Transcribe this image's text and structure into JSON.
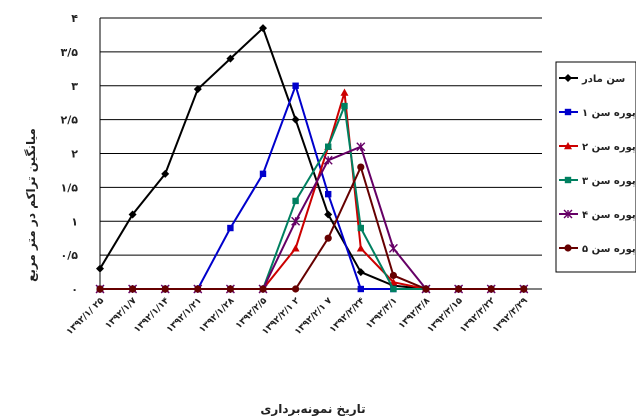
{
  "chart_data": {
    "type": "line",
    "title": "",
    "xlabel": "تاریخ نمونه‌برداری",
    "ylabel": "میانگین تراکم در متر مربع",
    "ylim": [
      0,
      4
    ],
    "yticks": [
      "۰",
      "۰/۵",
      "۱",
      "۱/۵",
      "۲",
      "۲/۵",
      "۳",
      "۳/۵",
      "۴"
    ],
    "grid": true,
    "legend_position": "right",
    "categories": [
      "۱۳۹۲/۱/ ۲۵",
      "۱۳۹۲/۱/۷",
      "۱۳۹۲/۱/۱۴",
      "۱۳۹۲/۱/۲۱",
      "۱۳۹۲/۱/۲۸",
      "۱۳۹۲/۲/۵",
      "۱۳۹۲/۲/۱ ۲",
      "۱۳۹۲/۲/۱ ۷",
      "۱۳۹۲/۲/۲۴",
      "۱۳۹۲/۳/۱",
      "۱۳۹۲/۳/۸",
      "۱۳۹۲/۳/۱۵",
      "۱۳۹۲/۳/۲۲",
      "۱۳۹۲/۳/۲۹"
    ],
    "x": [
      0,
      1,
      2,
      3,
      4,
      5,
      6,
      7,
      8,
      9,
      10,
      11,
      12,
      13
    ],
    "series": [
      {
        "name": "سن مادر",
        "color": "#000000",
        "marker": "diamond",
        "x": [
          0,
          1,
          2,
          3,
          4,
          5,
          6,
          7,
          8,
          9,
          10,
          11,
          12,
          13
        ],
        "values": [
          0.3,
          1.1,
          1.7,
          2.95,
          3.4,
          3.85,
          2.5,
          1.1,
          0.25,
          0.05,
          0,
          0,
          0,
          0
        ]
      },
      {
        "name": "پوره سن ۱",
        "color": "#0000cc",
        "marker": "square",
        "x": [
          0,
          1,
          2,
          3,
          4,
          5,
          6,
          7,
          8,
          9,
          10,
          11,
          12,
          13
        ],
        "values": [
          0,
          0,
          0,
          0,
          0.9,
          1.7,
          3.0,
          1.4,
          0,
          0,
          0,
          0,
          0,
          0
        ]
      },
      {
        "name": "پوره سن ۲",
        "color": "#cc0000",
        "marker": "triangle",
        "x": [
          0,
          1,
          2,
          3,
          4,
          5,
          6,
          7,
          7.5,
          8,
          9,
          10,
          11,
          12,
          13
        ],
        "values": [
          0,
          0,
          0,
          0,
          0,
          0,
          0.6,
          2.1,
          2.9,
          0.6,
          0.1,
          0,
          0,
          0,
          0
        ]
      },
      {
        "name": "پوره سن ۳",
        "color": "#008060",
        "marker": "square",
        "x": [
          0,
          1,
          2,
          3,
          4,
          5,
          6,
          7,
          7.5,
          8,
          9,
          10,
          11,
          12,
          13
        ],
        "values": [
          0,
          0,
          0,
          0,
          0,
          0,
          1.3,
          2.1,
          2.7,
          0.9,
          0,
          0,
          0,
          0,
          0
        ]
      },
      {
        "name": "پوره سن ۴",
        "color": "#660066",
        "marker": "star",
        "x": [
          0,
          1,
          2,
          3,
          4,
          5,
          6,
          7,
          8,
          9,
          10,
          11,
          12,
          13
        ],
        "values": [
          0,
          0,
          0,
          0,
          0,
          0,
          1.0,
          1.9,
          2.1,
          0.6,
          0,
          0,
          0,
          0
        ]
      },
      {
        "name": "پوره سن ۵",
        "color": "#660000",
        "marker": "circle",
        "x": [
          0,
          1,
          2,
          3,
          4,
          5,
          6,
          7,
          8,
          9,
          10,
          11,
          12,
          13
        ],
        "values": [
          0,
          0,
          0,
          0,
          0,
          0,
          0,
          0.75,
          1.8,
          0.2,
          0,
          0,
          0,
          0
        ]
      }
    ]
  }
}
